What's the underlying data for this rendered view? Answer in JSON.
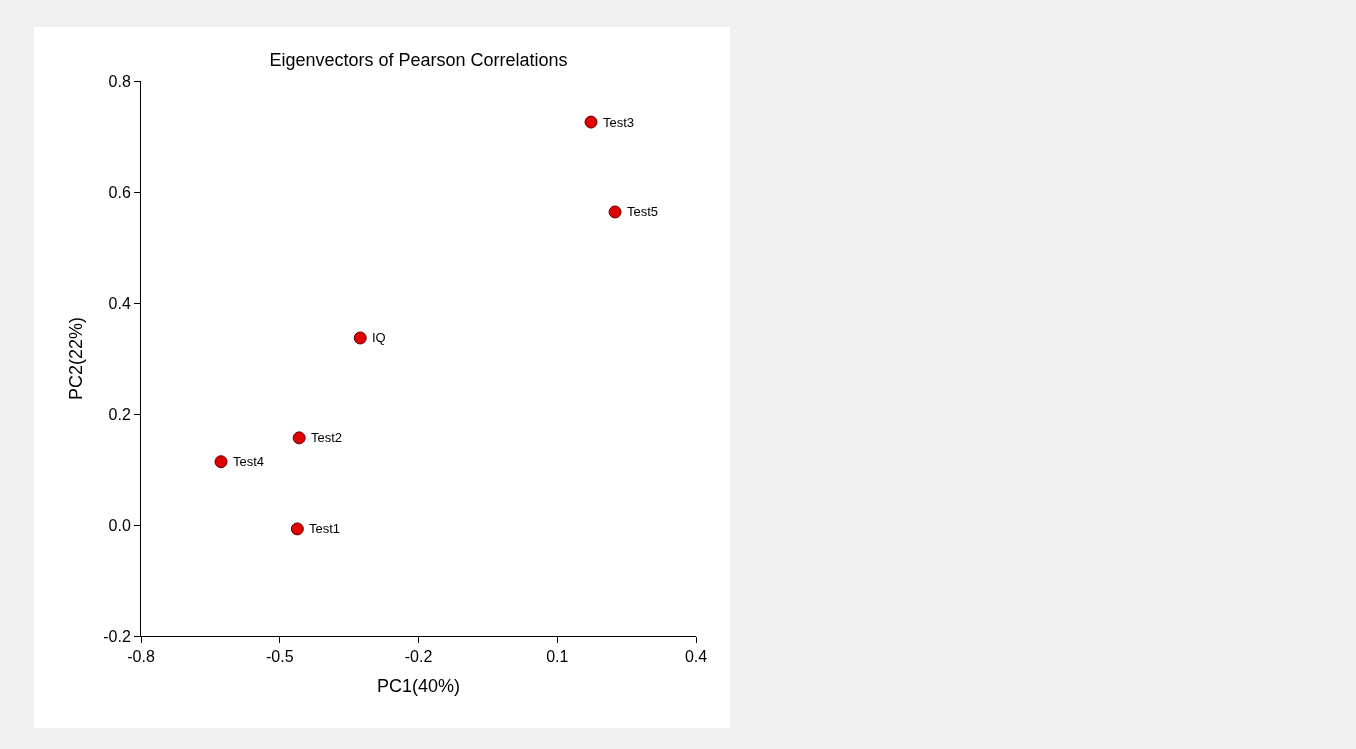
{
  "chart_data": {
    "type": "scatter",
    "title": "Eigenvectors of Pearson Correlations",
    "xlabel": "PC1(40%)",
    "ylabel": "PC2(22%)",
    "x": [
      0.173,
      0.225,
      -0.326,
      -0.458,
      -0.627,
      -0.462
    ],
    "series": [
      {
        "color": "#e00000",
        "values": [
          0.726,
          0.564,
          0.337,
          0.157,
          0.114,
          -0.007
        ]
      }
    ],
    "annotations": [
      {
        "text": "Test3",
        "x": 0.173,
        "y": 0.726
      },
      {
        "text": "Test5",
        "x": 0.225,
        "y": 0.564
      },
      {
        "text": "IQ",
        "x": -0.326,
        "y": 0.337
      },
      {
        "text": "Test2",
        "x": -0.458,
        "y": 0.157
      },
      {
        "text": "Test4",
        "x": -0.627,
        "y": 0.114
      },
      {
        "text": "Test1",
        "x": -0.462,
        "y": -0.007
      }
    ],
    "xlim": [
      -0.8,
      0.4
    ],
    "xticks": [
      -0.8,
      -0.5,
      -0.2,
      0.1,
      0.4
    ],
    "ylim": [
      -0.2,
      0.8
    ],
    "yticks": [
      {
        "value": -0.2,
        "label": "-0.2"
      },
      {
        "value": 0,
        "label": "0.0"
      },
      0.2,
      0.4,
      0.6,
      0.8
    ],
    "marker": "circle",
    "grid": false,
    "legend": false
  }
}
